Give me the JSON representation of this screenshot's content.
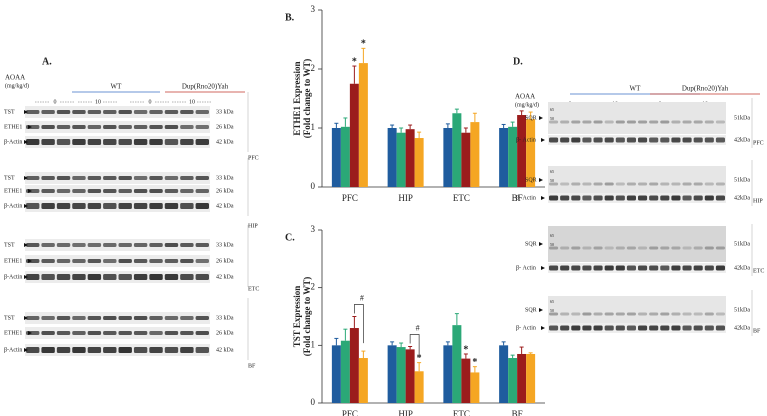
{
  "chart_data": [
    {
      "type": "bar",
      "label": "B.",
      "ylabel": "ETHE1 Expression",
      "ylabel_note": "(Fold change to WT)",
      "categories": [
        "PFC",
        "HIP",
        "ETC",
        "BF"
      ],
      "ylim": [
        0,
        3
      ],
      "yticks": [
        0,
        1,
        2,
        3
      ],
      "series": [
        {
          "color": "#1f5c9e",
          "values": [
            1.0,
            1.0,
            1.0,
            1.0
          ],
          "errors": [
            0.08,
            0.05,
            0.07,
            0.06
          ],
          "significance": [
            null,
            null,
            null,
            null
          ]
        },
        {
          "color": "#2ba877",
          "values": [
            1.02,
            0.92,
            1.25,
            1.02
          ],
          "errors": [
            0.15,
            0.08,
            0.07,
            0.08
          ],
          "significance": [
            null,
            null,
            null,
            null
          ]
        },
        {
          "color": "#9b1c1c",
          "values": [
            1.75,
            0.98,
            0.92,
            1.22
          ],
          "errors": [
            0.3,
            0.07,
            0.08,
            0.07
          ],
          "significance": [
            "*",
            null,
            null,
            null
          ]
        },
        {
          "color": "#f5a623",
          "values": [
            2.1,
            0.83,
            1.1,
            1.15
          ],
          "errors": [
            0.25,
            0.1,
            0.15,
            0.12
          ],
          "significance": [
            "*",
            null,
            null,
            null
          ]
        }
      ]
    },
    {
      "type": "bar",
      "label": "C.",
      "ylabel": "TST Expression",
      "ylabel_note": "(Fold change to WT)",
      "categories": [
        "PFC",
        "HIP",
        "ETC",
        "BF"
      ],
      "ylim": [
        0,
        3
      ],
      "yticks": [
        0,
        1,
        2,
        3
      ],
      "series": [
        {
          "color": "#1f5c9e",
          "values": [
            1.0,
            1.0,
            1.0,
            1.0
          ],
          "errors": [
            0.12,
            0.06,
            0.06,
            0.06
          ],
          "significance": [
            null,
            null,
            null,
            null
          ]
        },
        {
          "color": "#2ba877",
          "values": [
            1.08,
            0.97,
            1.35,
            0.78
          ],
          "errors": [
            0.2,
            0.07,
            0.2,
            0.05
          ],
          "significance": [
            null,
            null,
            null,
            null
          ]
        },
        {
          "color": "#9b1c1c",
          "values": [
            1.3,
            0.93,
            0.77,
            0.85
          ],
          "errors": [
            0.2,
            0.05,
            0.08,
            0.12
          ],
          "significance": [
            null,
            null,
            "*",
            null
          ]
        },
        {
          "color": "#f5a623",
          "values": [
            0.78,
            0.55,
            0.53,
            0.85
          ],
          "errors": [
            0.12,
            0.15,
            0.1,
            0.02
          ],
          "significance": [
            null,
            "*",
            "*",
            null
          ],
          "bracket_labels": [
            "#",
            "#",
            null,
            null
          ]
        }
      ]
    }
  ],
  "blot_a": {
    "label": "A.",
    "treatment": "AOAA",
    "unit": "(mg/kg/d)",
    "groups": [
      "WT",
      "Dup(Rno20)Yah"
    ],
    "doses": [
      "0",
      "10",
      "0",
      "10"
    ],
    "regions": [
      {
        "name": "PFC",
        "rows": [
          {
            "protein": "TST",
            "size": "33 kDa"
          },
          {
            "protein": "ETHE1",
            "size": "26 kDa"
          },
          {
            "protein": "β-Actin",
            "size": "42 kDa"
          }
        ]
      },
      {
        "name": "HIP",
        "rows": [
          {
            "protein": "TST",
            "size": "33 kDa"
          },
          {
            "protein": "ETHE1",
            "size": "26 kDa"
          },
          {
            "protein": "β-Actin",
            "size": "42 kDa"
          }
        ]
      },
      {
        "name": "ETC",
        "rows": [
          {
            "protein": "TST",
            "size": "33 kDa"
          },
          {
            "protein": "ETHE1",
            "size": "26 kDa"
          },
          {
            "protein": "β-Actin",
            "size": "42 kDa"
          }
        ]
      },
      {
        "name": "BF",
        "rows": [
          {
            "protein": "TST",
            "size": "33 kDa"
          },
          {
            "protein": "ETHE1",
            "size": "26 kDa"
          },
          {
            "protein": "β-Actin",
            "size": "42 kDa"
          }
        ]
      }
    ]
  },
  "blot_d": {
    "label": "D.",
    "treatment": "AOAA",
    "unit": "(mg/kg/d)",
    "groups": [
      "WT",
      "Dup(Rno20)Yah"
    ],
    "doses": [
      "0",
      "10",
      "0",
      "10"
    ],
    "markers": [
      "65",
      "50"
    ],
    "regions": [
      {
        "name": "PFC",
        "rows": [
          {
            "protein": "SQR",
            "size": "51kDa"
          },
          {
            "protein": "β- Actin",
            "size": "42kDa"
          }
        ]
      },
      {
        "name": "HIP",
        "rows": [
          {
            "protein": "SQR",
            "size": "51kDa"
          },
          {
            "protein": "β- Actin",
            "size": "42kDa"
          }
        ]
      },
      {
        "name": "ETC",
        "rows": [
          {
            "protein": "SQR",
            "size": "51kDa"
          },
          {
            "protein": "β- Actin",
            "size": "42kDa"
          }
        ]
      },
      {
        "name": "BF",
        "rows": [
          {
            "protein": "SQR",
            "size": "51kDa"
          },
          {
            "protein": "β- Actin",
            "size": "42kDa"
          }
        ]
      }
    ]
  }
}
